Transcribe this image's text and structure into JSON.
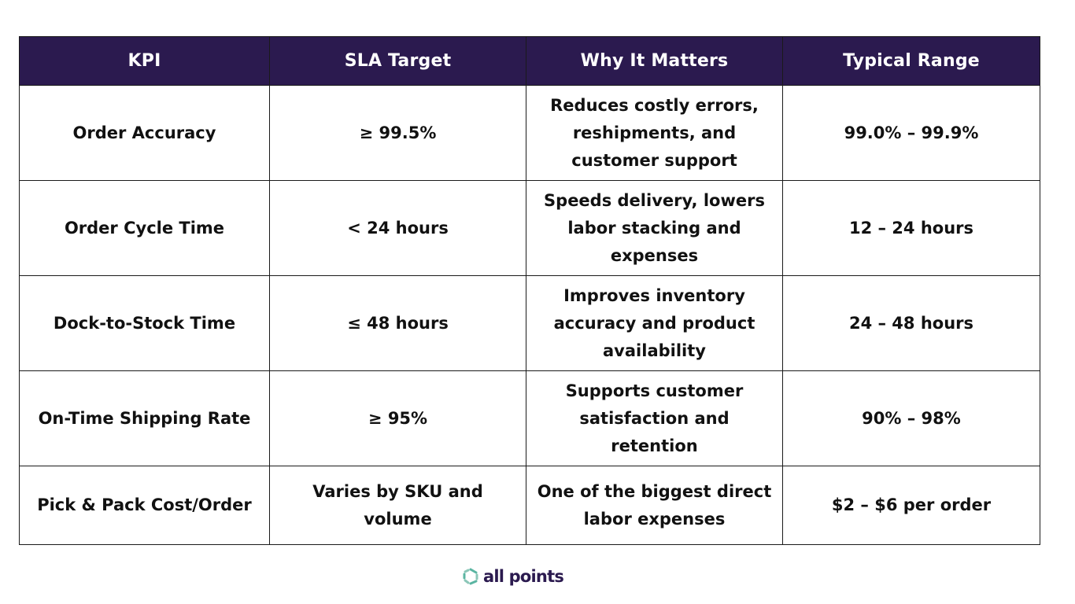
{
  "table": {
    "headers": [
      "KPI",
      "SLA Target",
      "Why It Matters",
      "Typical Range"
    ],
    "rows": [
      {
        "kpi": "Order Accuracy",
        "sla_target": "≥ 99.5%",
        "why_it_matters": "Reduces costly errors, reshipments, and customer support",
        "typical_range": "99.0% – 99.9%"
      },
      {
        "kpi": "Order Cycle Time",
        "sla_target": "< 24 hours",
        "why_it_matters": "Speeds delivery, lowers labor stacking and expenses",
        "typical_range": "12 – 24 hours"
      },
      {
        "kpi": "Dock-to-Stock Time",
        "sla_target": "≤ 48 hours",
        "why_it_matters": "Improves inventory accuracy and product availability",
        "typical_range": "24 – 48 hours"
      },
      {
        "kpi": "On-Time Shipping Rate",
        "sla_target": "≥ 95%",
        "why_it_matters": "Supports customer satisfaction and retention",
        "typical_range": "90% – 98%"
      },
      {
        "kpi": "Pick & Pack Cost/Order",
        "sla_target": "Varies by SKU and volume",
        "why_it_matters": "One of the biggest direct labor expenses",
        "typical_range": "$2 – $6 per order"
      }
    ]
  },
  "logo": {
    "text": "all points",
    "icon": "allpoints-ring-icon",
    "colors": {
      "teal": "#5bb5a2",
      "purple": "#2b1a4f"
    }
  },
  "colors": {
    "header_bg": "#2b1a4f",
    "header_text": "#ffffff",
    "border": "#1a1a1a"
  }
}
